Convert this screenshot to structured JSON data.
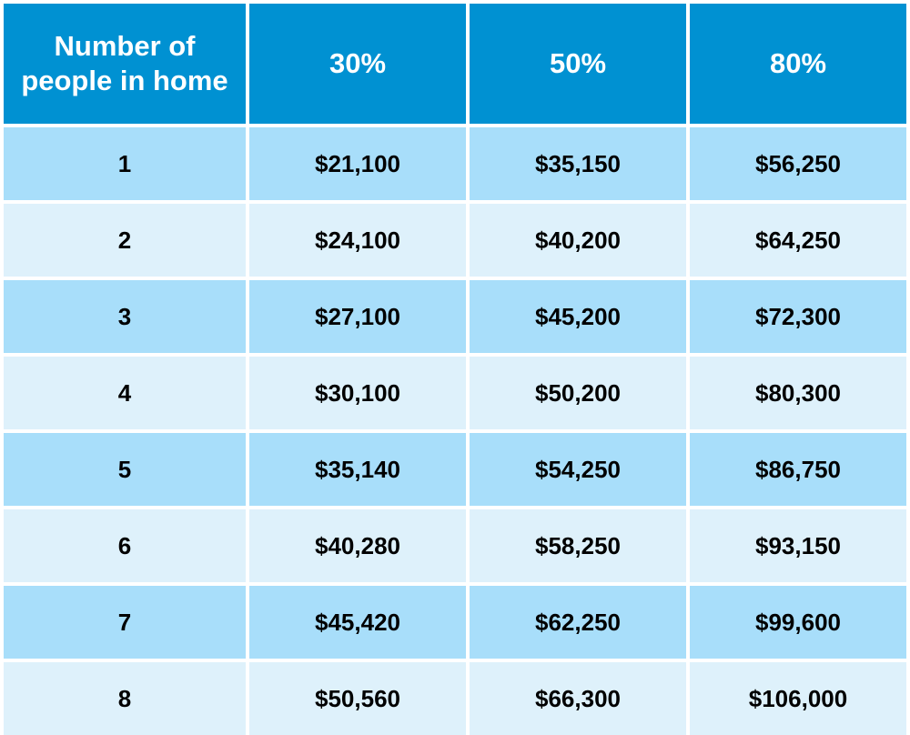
{
  "header": {
    "people_line1": "Number of",
    "people_line2": "people in home",
    "col_30": "30%",
    "col_50": "50%",
    "col_80": "80%"
  },
  "rows": [
    {
      "people": "1",
      "p30": "$21,100",
      "p50": "$35,150",
      "p80": "$56,250"
    },
    {
      "people": "2",
      "p30": "$24,100",
      "p50": "$40,200",
      "p80": "$64,250"
    },
    {
      "people": "3",
      "p30": "$27,100",
      "p50": "$45,200",
      "p80": "$72,300"
    },
    {
      "people": "4",
      "p30": "$30,100",
      "p50": "$50,200",
      "p80": "$80,300"
    },
    {
      "people": "5",
      "p30": "$35,140",
      "p50": "$54,250",
      "p80": "$86,750"
    },
    {
      "people": "6",
      "p30": "$40,280",
      "p50": "$58,250",
      "p80": "$93,150"
    },
    {
      "people": "7",
      "p30": "$45,420",
      "p50": "$62,250",
      "p80": "$99,600"
    },
    {
      "people": "8",
      "p30": "$50,560",
      "p50": "$66,300",
      "p80": "$106,000"
    }
  ],
  "colors": {
    "header_bg": "#0091d2",
    "row_odd_bg": "#a8defa",
    "row_even_bg": "#def1fb"
  }
}
